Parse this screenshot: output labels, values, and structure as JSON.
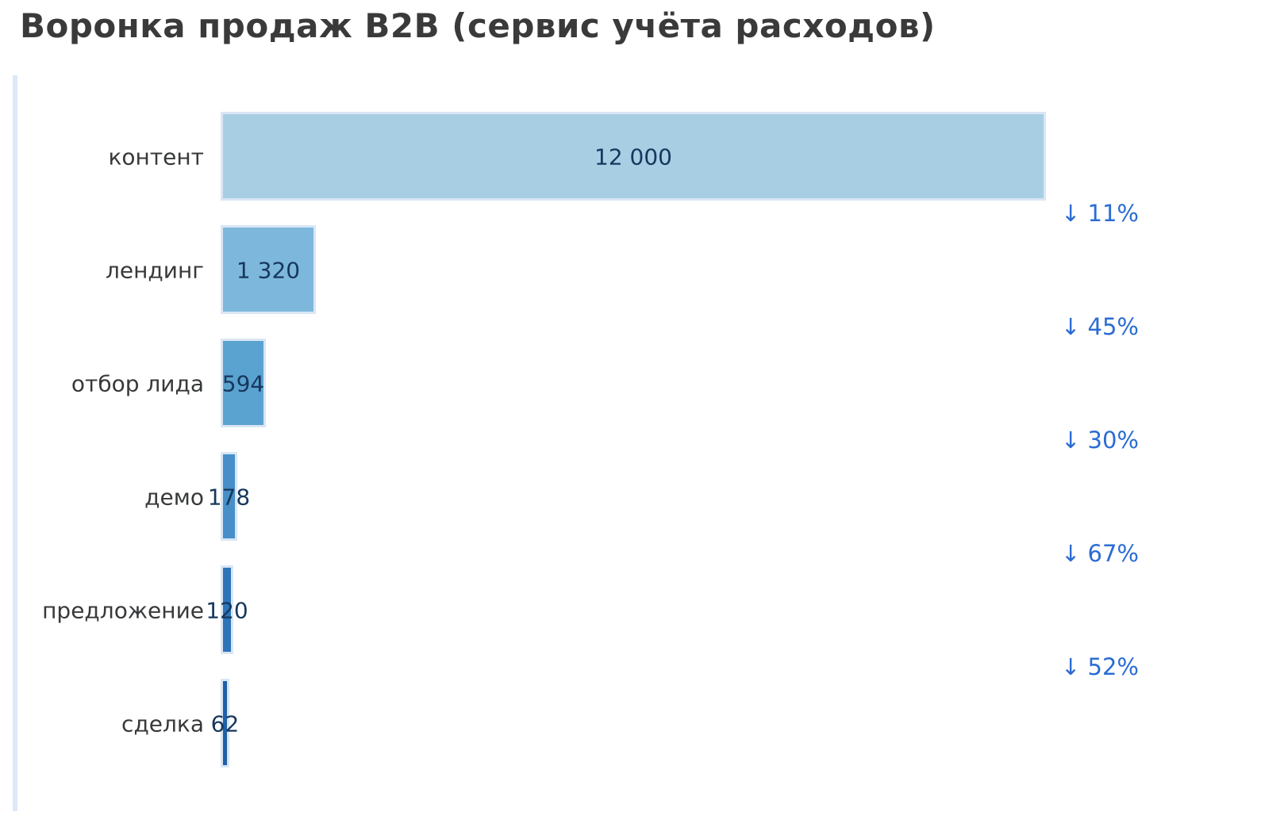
{
  "title": "Воронка продаж B2B (сервис учёта расходов)",
  "chart_data": {
    "type": "funnel",
    "title": "Воронка продаж B2B (сервис учёта расходов)",
    "orientation": "horizontal-left-aligned",
    "categories": [
      "контент",
      "лендинг",
      "отбор лида",
      "демо",
      "предложение",
      "сделка"
    ],
    "values": [
      12000,
      1320,
      594,
      178,
      120,
      62
    ],
    "value_labels": [
      "12 000",
      "1 320",
      "594",
      "178",
      "120",
      "62"
    ],
    "conversions": [
      "↓ 11%",
      "↓ 45%",
      "↓ 30%",
      "↓ 67%",
      "↓ 52%"
    ],
    "max_value": 12000,
    "legend": "none",
    "grid": "off",
    "colors": {
      "bar_fills": [
        "#a8cee4",
        "#7db8dc",
        "#5aa2d0",
        "#478fc8",
        "#2e74b8",
        "#1e5fa8"
      ],
      "bar_border": "#d9e6f5",
      "value_text": "#17375d",
      "category_text": "#37393b",
      "conversion_text": "#2b6cd4",
      "title_text": "#3a3a3a",
      "axis_strip": "#dde9f7",
      "background": "#ffffff"
    }
  }
}
